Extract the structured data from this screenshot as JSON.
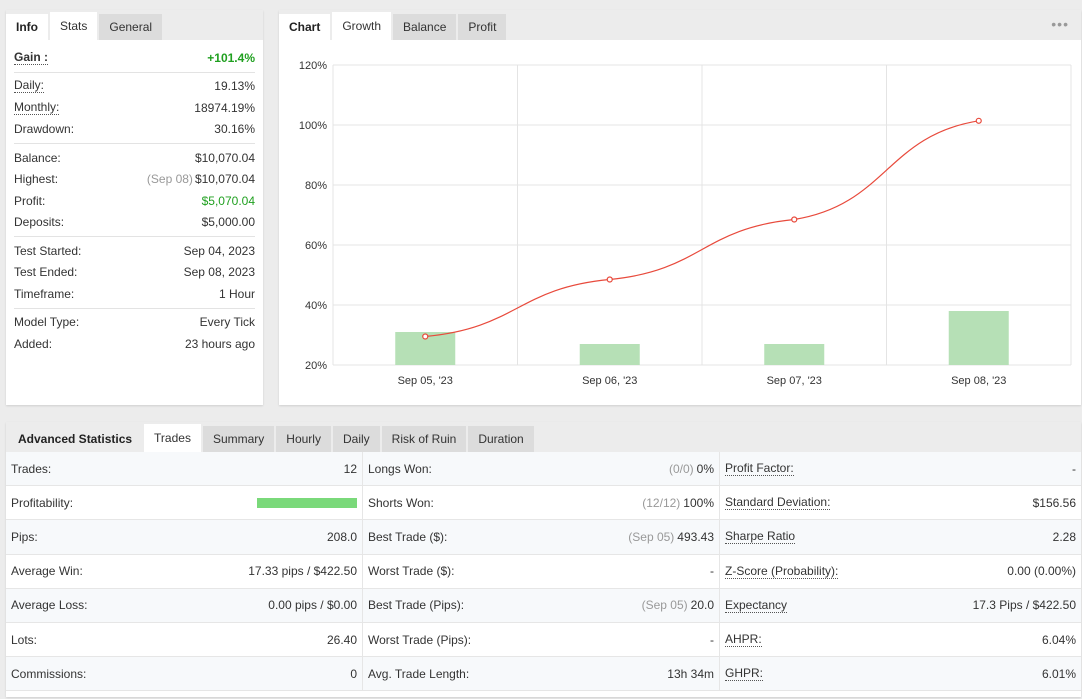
{
  "info_panel": {
    "tabs": [
      "Info",
      "Stats",
      "General"
    ],
    "active_tab": "Stats",
    "gain": {
      "label": "Gain :",
      "value": "+101.4%"
    },
    "daily": {
      "label": "Daily:",
      "value": "19.13%"
    },
    "monthly": {
      "label": "Monthly:",
      "value": "18974.19%"
    },
    "drawdown": {
      "label": "Drawdown:",
      "value": "30.16%"
    },
    "balance": {
      "label": "Balance:",
      "value": "$10,070.04"
    },
    "highest": {
      "label": "Highest:",
      "date": "(Sep 08)",
      "value": "$10,070.04"
    },
    "profit": {
      "label": "Profit:",
      "value": "$5,070.04"
    },
    "deposits": {
      "label": "Deposits:",
      "value": "$5,000.00"
    },
    "test_started": {
      "label": "Test Started:",
      "value": "Sep 04, 2023"
    },
    "test_ended": {
      "label": "Test Ended:",
      "value": "Sep 08, 2023"
    },
    "timeframe": {
      "label": "Timeframe:",
      "value": "1 Hour"
    },
    "model_type": {
      "label": "Model Type:",
      "value": "Every Tick"
    },
    "added": {
      "label": "Added:",
      "value": "23 hours ago"
    }
  },
  "chart_panel": {
    "tabs": [
      "Chart",
      "Growth",
      "Balance",
      "Profit"
    ],
    "active_tab": "Growth",
    "more_icon": "ellipsis-icon"
  },
  "chart_data": {
    "type": "bar",
    "categories": [
      "Sep 05, '23",
      "Sep 06, '23",
      "Sep 07, '23",
      "Sep 08, '23"
    ],
    "series": [
      {
        "type": "bar",
        "values": [
          31,
          27,
          27,
          38
        ],
        "color": "#b6e0b6"
      },
      {
        "type": "line",
        "values": [
          29.5,
          48.5,
          68.5,
          101.4
        ],
        "color": "#e84a3c"
      }
    ],
    "yticks": [
      "20%",
      "40%",
      "60%",
      "80%",
      "100%",
      "120%"
    ],
    "ylim": [
      20,
      120
    ],
    "grid": true
  },
  "advanced": {
    "title": "Advanced Statistics",
    "tabs": [
      "Trades",
      "Summary",
      "Hourly",
      "Daily",
      "Risk of Ruin",
      "Duration"
    ],
    "active_tab": "Trades",
    "col1": [
      {
        "label": "Trades:",
        "value": "12"
      },
      {
        "label": "Profitability:",
        "value": "",
        "bar": 1.0
      },
      {
        "label": "Pips:",
        "value": "208.0"
      },
      {
        "label": "Average Win:",
        "value": "17.33 pips / $422.50"
      },
      {
        "label": "Average Loss:",
        "value": "0.00 pips / $0.00"
      },
      {
        "label": "Lots:",
        "value": "26.40"
      },
      {
        "label": "Commissions:",
        "value": "0"
      }
    ],
    "col2": [
      {
        "label": "Longs Won:",
        "muted": "(0/0)",
        "value": "0%"
      },
      {
        "label": "Shorts Won:",
        "muted": "(12/12)",
        "value": "100%"
      },
      {
        "label": "Best Trade ($):",
        "muted": "(Sep 05)",
        "value": "493.43"
      },
      {
        "label": "Worst Trade ($):",
        "muted": "",
        "value": "-"
      },
      {
        "label": "Best Trade (Pips):",
        "muted": "(Sep 05)",
        "value": "20.0"
      },
      {
        "label": "Worst Trade (Pips):",
        "muted": "",
        "value": "-"
      },
      {
        "label": "Avg. Trade Length:",
        "muted": "",
        "value": "13h 34m"
      }
    ],
    "col3": [
      {
        "label": "Profit Factor:",
        "value": "-"
      },
      {
        "label": "Standard Deviation:",
        "value": "$156.56"
      },
      {
        "label": "Sharpe Ratio",
        "value": "2.28"
      },
      {
        "label": "Z-Score (Probability):",
        "value": "0.00 (0.00%)"
      },
      {
        "label": "Expectancy",
        "value": "17.3 Pips / $422.50"
      },
      {
        "label": "AHPR:",
        "value": "6.04%"
      },
      {
        "label": "GHPR:",
        "value": "6.01%"
      }
    ]
  }
}
